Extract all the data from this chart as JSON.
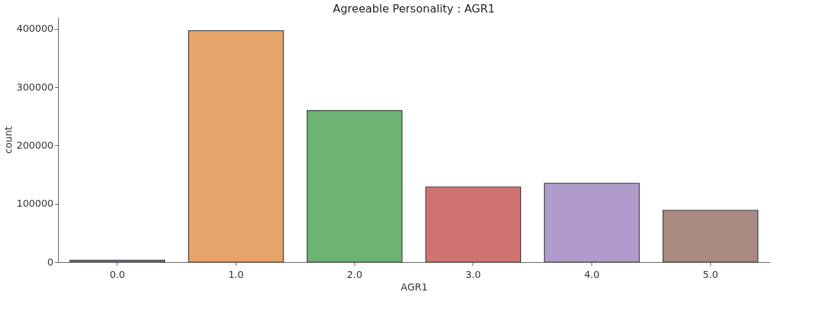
{
  "chart_data": {
    "type": "bar",
    "title": "Agreeable Personality : AGR1",
    "xlabel": "AGR1",
    "ylabel": "count",
    "categories": [
      "0.0",
      "1.0",
      "2.0",
      "3.0",
      "4.0",
      "5.0"
    ],
    "values": [
      3000,
      397000,
      260000,
      129000,
      135000,
      89000
    ],
    "colors": [
      "#6a83b0",
      "#e6a46a",
      "#6db374",
      "#d27373",
      "#b19bcb",
      "#a88a80"
    ],
    "ylim": [
      0,
      420000
    ],
    "yticks": [
      0,
      100000,
      200000,
      300000,
      400000
    ],
    "grid": false
  }
}
